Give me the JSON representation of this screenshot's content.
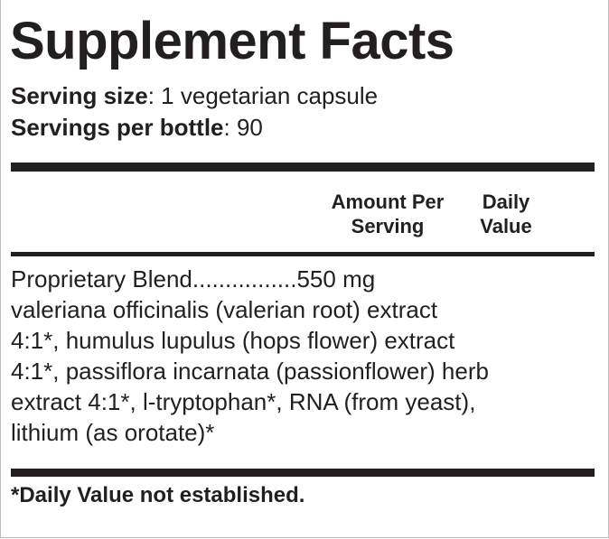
{
  "title": "Supplement Facts",
  "serving_size": {
    "label": "Serving size",
    "value": ": 1 vegetarian capsule"
  },
  "servings_per_bottle": {
    "label": "Servings per bottle",
    "value": ": 90"
  },
  "columns": {
    "amount": [
      "Amount Per",
      "Serving"
    ],
    "daily_value": [
      "Daily",
      "Value"
    ]
  },
  "blend": {
    "name": "Proprietary Blend",
    "dots": "................",
    "amount": "550 mg"
  },
  "ingredients": [
    "valeriana officinalis (valerian root) extract",
    "4:1*, humulus lupulus (hops flower) extract",
    "4:1*, passiflora incarnata (passionflower) herb",
    "extract 4:1*, l-tryptophan*, RNA (from yeast),",
    "lithium (as orotate)*"
  ],
  "footnote": "*Daily Value not established."
}
